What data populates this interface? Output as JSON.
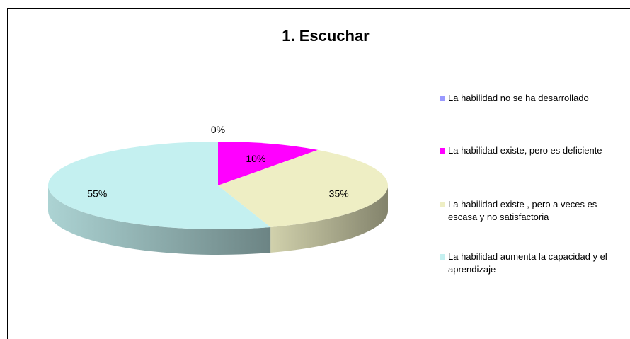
{
  "chart_data": {
    "type": "pie",
    "title": "1. Escuchar",
    "categories": [
      "La habilidad no se ha desarrollado",
      "La habilidad existe, pero es deficiente",
      "La habilidad existe , pero a veces es escasa y no satisfactoria",
      "La habilidad aumenta la capacidad y el aprendizaje"
    ],
    "values": [
      0,
      10,
      35,
      55
    ],
    "value_labels": [
      "0%",
      "10%",
      "35%",
      "55%"
    ],
    "colors": [
      "#9999ff",
      "#ff00ff",
      "#eeeec4",
      "#c4f0f0"
    ],
    "legend": "right"
  }
}
